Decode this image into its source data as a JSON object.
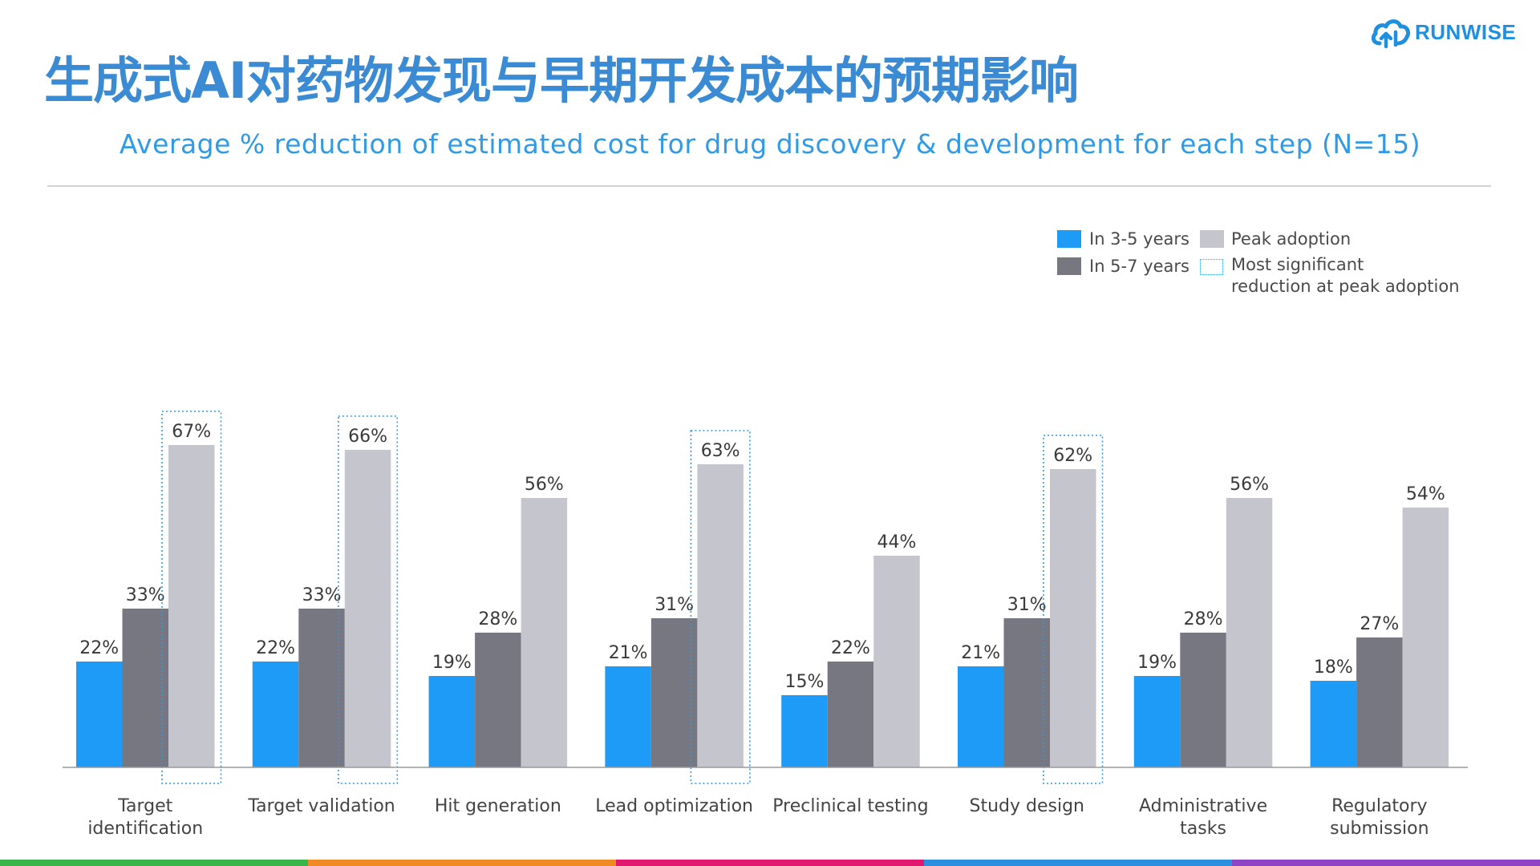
{
  "header": {
    "title": "生成式AI对药物发现与早期开发成本的预期影响",
    "title_color": "#3b8bd4",
    "subtitle": "Average % reduction of estimated cost for drug discovery & development for each step (N=15)",
    "subtitle_color": "#2e9ae8"
  },
  "logo": {
    "text": "RUNWISE",
    "color": "#1f8fe0",
    "icon": "cloud-logo-icon"
  },
  "legend": {
    "items": [
      {
        "label": "In 3-5 years",
        "color": "#1e9bf7"
      },
      {
        "label": "In 5-7 years",
        "color": "#777781"
      },
      {
        "label": "Peak adoption",
        "color": "#c5c5cd"
      },
      {
        "label_line1": "Most significant",
        "label_line2": "reduction at peak adoption",
        "style": "dotted-box",
        "color": "#2e9ae8"
      }
    ]
  },
  "chart_data": {
    "type": "bar",
    "title": "Average % reduction of estimated cost for drug discovery & development for each step (N=15)",
    "categories": [
      [
        "Target",
        "identification"
      ],
      [
        "Target validation"
      ],
      [
        "Hit generation"
      ],
      [
        "Lead optimization"
      ],
      [
        "Preclinical testing"
      ],
      [
        "Study design"
      ],
      [
        "Administrative",
        "tasks"
      ],
      [
        "Regulatory",
        "submission"
      ]
    ],
    "series": [
      {
        "name": "In 3-5 years",
        "color": "#1e9bf7",
        "values": [
          22,
          22,
          19,
          21,
          15,
          21,
          19,
          18
        ]
      },
      {
        "name": "In 5-7 years",
        "color": "#777781",
        "values": [
          33,
          33,
          28,
          31,
          22,
          31,
          28,
          27
        ]
      },
      {
        "name": "Peak adoption",
        "color": "#c5c5cd",
        "values": [
          67,
          66,
          56,
          63,
          44,
          62,
          56,
          54
        ]
      }
    ],
    "highlighted": [
      "Target identification",
      "Target validation",
      "Lead optimization",
      "Study design"
    ],
    "value_suffix": "%",
    "ylim": [
      0,
      70
    ],
    "xlabel": "",
    "ylabel": "",
    "grid": false
  },
  "bottom_strip": {
    "colors": [
      "#3ab54a",
      "#f08a24",
      "#e2176f",
      "#2d8fe0",
      "#8e44c4"
    ]
  }
}
